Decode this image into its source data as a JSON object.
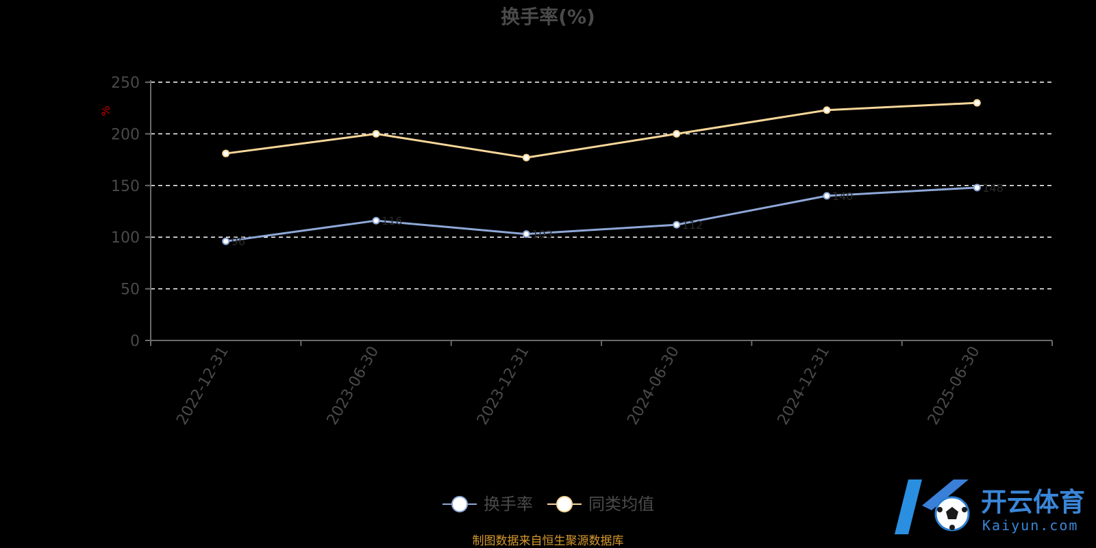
{
  "chart_data": {
    "type": "line",
    "title": "换手率(%)",
    "ylabel": "%",
    "xlabel": "",
    "categories": [
      "2022-12-31",
      "2023-06-30",
      "2023-12-31",
      "2024-06-30",
      "2024-12-31",
      "2025-06-30"
    ],
    "ylim": [
      0,
      250
    ],
    "yticks": [
      0,
      50,
      100,
      150,
      200,
      250
    ],
    "grid": true,
    "legend_position": "bottom",
    "series": [
      {
        "name": "换手率",
        "values": [
          96,
          116,
          103,
          112,
          140,
          148
        ],
        "labels": [
          "96",
          "116",
          "103",
          "112",
          "140",
          "148"
        ],
        "color": "#8fa8d8"
      },
      {
        "name": "同类均值",
        "values": [
          181,
          200,
          177,
          200,
          223,
          230
        ],
        "labels": [
          "",
          "",
          "",
          "",
          "",
          ""
        ],
        "color": "#f7d79a"
      }
    ]
  },
  "source": "制图数据来自恒生聚源数据库",
  "watermark": {
    "brand": "开云体育",
    "url": "Kaiyun.com"
  },
  "colors": {
    "background": "#000000",
    "grid": "#ffffff",
    "axis": "#6a6a6a",
    "text": "#4a4a4a",
    "source": "#d79a2e",
    "unit": "#cc0000"
  }
}
